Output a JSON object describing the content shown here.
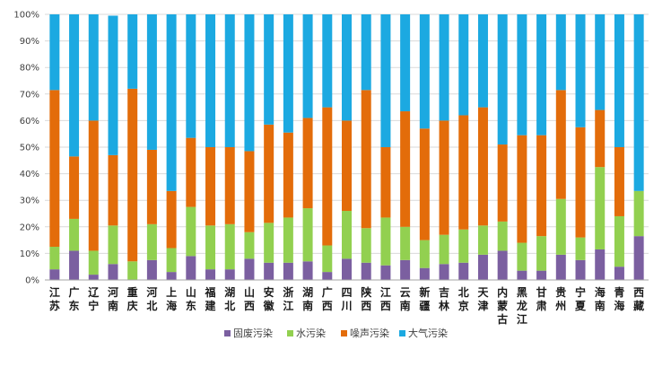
{
  "chart_data": {
    "type": "bar",
    "stacked": true,
    "percent": true,
    "title": "",
    "xlabel": "",
    "ylabel": "",
    "ylim": [
      0,
      100
    ],
    "y_ticks": [
      "0%",
      "10%",
      "20%",
      "30%",
      "40%",
      "50%",
      "60%",
      "70%",
      "80%",
      "90%",
      "100%"
    ],
    "y_tick_values": [
      0,
      10,
      20,
      30,
      40,
      50,
      60,
      70,
      80,
      90,
      100
    ],
    "categories": [
      "江苏",
      "广东",
      "辽宁",
      "河南",
      "重庆",
      "河北",
      "上海",
      "山东",
      "福建",
      "湖北",
      "山西",
      "安徽",
      "浙江",
      "湖南",
      "广西",
      "四川",
      "陕西",
      "江西",
      "云南",
      "新疆",
      "吉林",
      "北京",
      "天津",
      "内蒙古",
      "黑龙江",
      "甘肃",
      "贵州",
      "宁夏",
      "海南",
      "青海",
      "西藏"
    ],
    "legend_position": "bottom",
    "series": [
      {
        "name": "固废污染",
        "color": "#7B5FA0",
        "values": [
          4,
          11,
          2,
          6,
          0,
          7.5,
          3,
          9,
          4,
          4,
          8,
          6.5,
          6.5,
          7,
          3,
          8,
          6.5,
          5.5,
          7.5,
          4.5,
          6,
          6.5,
          9.5,
          11,
          3.5,
          3.5,
          9.5,
          7.5,
          11.5,
          5,
          16.5
        ]
      },
      {
        "name": "水污染",
        "color": "#92D050",
        "values": [
          8.5,
          12,
          9,
          14.5,
          7,
          13.5,
          9,
          18.5,
          16.5,
          17,
          10,
          15,
          17,
          20,
          10,
          18,
          13,
          18,
          12.5,
          10.5,
          11,
          12.5,
          11,
          11,
          10.5,
          13,
          21,
          8.5,
          31,
          19,
          17
        ]
      },
      {
        "name": "噪声污染",
        "color": "#E36C0A",
        "values": [
          59,
          23.5,
          49,
          26.5,
          65,
          28,
          21.5,
          26,
          29.5,
          29,
          30.5,
          37,
          32,
          34,
          52,
          34,
          52,
          26.5,
          43.5,
          42,
          43,
          43,
          44.5,
          29,
          40.5,
          38,
          41,
          41.5,
          21.5,
          26,
          0
        ]
      },
      {
        "name": "大气污染",
        "color": "#1CA9E1",
        "values": [
          28.5,
          53.5,
          40,
          52.5,
          28,
          51,
          66.5,
          46.5,
          50,
          50,
          51.5,
          41.5,
          44.5,
          39,
          35,
          40,
          28.5,
          50,
          36.5,
          43,
          40,
          38,
          35,
          49,
          45.5,
          45.5,
          28.5,
          42.5,
          36,
          50,
          66.5
        ]
      }
    ]
  }
}
